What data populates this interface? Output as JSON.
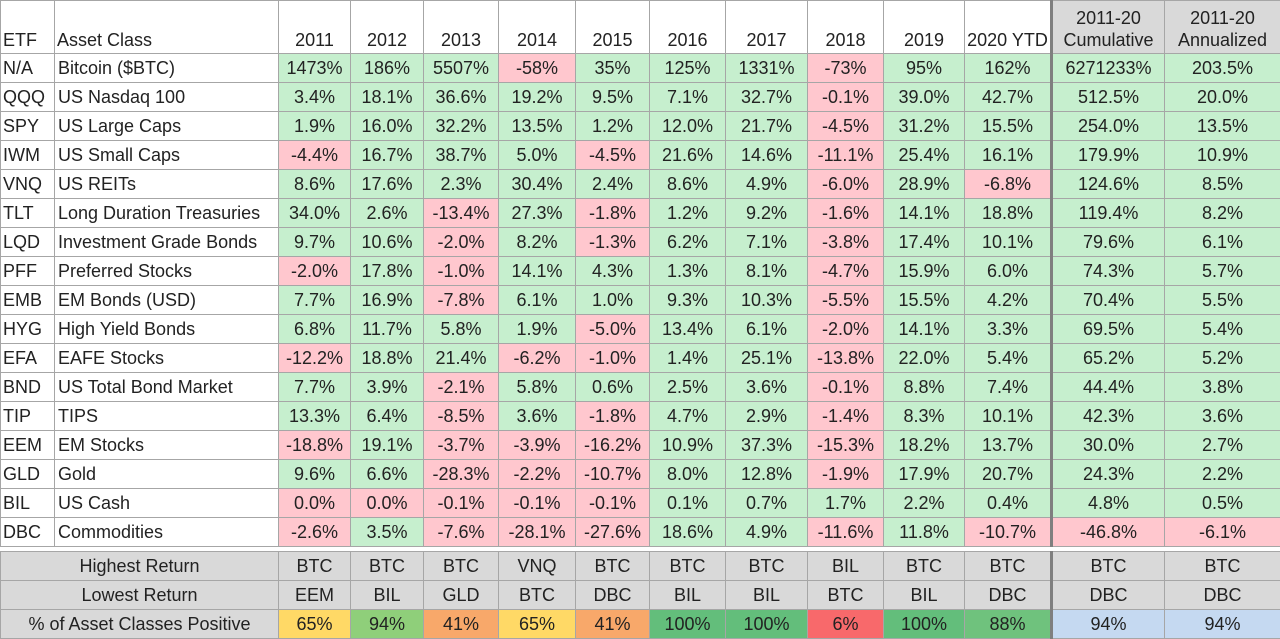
{
  "chart_data": {
    "type": "table",
    "columns": [
      "ETF",
      "Asset Class",
      "2011",
      "2012",
      "2013",
      "2014",
      "2015",
      "2016",
      "2017",
      "2018",
      "2019",
      "2020 YTD",
      "2011-20 Cumulative",
      "2011-20 Annualized"
    ],
    "header": {
      "etf": "ETF",
      "asset": "Asset Class",
      "years": [
        "2011",
        "2012",
        "2013",
        "2014",
        "2015",
        "2016",
        "2017",
        "2018",
        "2019",
        "2020 YTD"
      ],
      "cum_top": "2011-20",
      "cum_bottom": "Cumulative",
      "ann_top": "2011-20",
      "ann_bottom": "Annualized"
    },
    "rows": [
      {
        "etf": "N/A",
        "name": "Bitcoin ($BTC)",
        "values": [
          "1473%",
          "186%",
          "5507%",
          "-58%",
          "35%",
          "125%",
          "1331%",
          "-73%",
          "95%",
          "162%",
          "6271233%",
          "203.5%"
        ]
      },
      {
        "etf": "QQQ",
        "name": "US Nasdaq 100",
        "values": [
          "3.4%",
          "18.1%",
          "36.6%",
          "19.2%",
          "9.5%",
          "7.1%",
          "32.7%",
          "-0.1%",
          "39.0%",
          "42.7%",
          "512.5%",
          "20.0%"
        ]
      },
      {
        "etf": "SPY",
        "name": "US Large Caps",
        "values": [
          "1.9%",
          "16.0%",
          "32.2%",
          "13.5%",
          "1.2%",
          "12.0%",
          "21.7%",
          "-4.5%",
          "31.2%",
          "15.5%",
          "254.0%",
          "13.5%"
        ]
      },
      {
        "etf": "IWM",
        "name": "US Small Caps",
        "values": [
          "-4.4%",
          "16.7%",
          "38.7%",
          "5.0%",
          "-4.5%",
          "21.6%",
          "14.6%",
          "-11.1%",
          "25.4%",
          "16.1%",
          "179.9%",
          "10.9%"
        ]
      },
      {
        "etf": "VNQ",
        "name": "US REITs",
        "values": [
          "8.6%",
          "17.6%",
          "2.3%",
          "30.4%",
          "2.4%",
          "8.6%",
          "4.9%",
          "-6.0%",
          "28.9%",
          "-6.8%",
          "124.6%",
          "8.5%"
        ]
      },
      {
        "etf": "TLT",
        "name": "Long Duration Treasuries",
        "values": [
          "34.0%",
          "2.6%",
          "-13.4%",
          "27.3%",
          "-1.8%",
          "1.2%",
          "9.2%",
          "-1.6%",
          "14.1%",
          "18.8%",
          "119.4%",
          "8.2%"
        ]
      },
      {
        "etf": "LQD",
        "name": "Investment Grade Bonds",
        "values": [
          "9.7%",
          "10.6%",
          "-2.0%",
          "8.2%",
          "-1.3%",
          "6.2%",
          "7.1%",
          "-3.8%",
          "17.4%",
          "10.1%",
          "79.6%",
          "6.1%"
        ]
      },
      {
        "etf": "PFF",
        "name": "Preferred Stocks",
        "values": [
          "-2.0%",
          "17.8%",
          "-1.0%",
          "14.1%",
          "4.3%",
          "1.3%",
          "8.1%",
          "-4.7%",
          "15.9%",
          "6.0%",
          "74.3%",
          "5.7%"
        ]
      },
      {
        "etf": "EMB",
        "name": "EM Bonds (USD)",
        "values": [
          "7.7%",
          "16.9%",
          "-7.8%",
          "6.1%",
          "1.0%",
          "9.3%",
          "10.3%",
          "-5.5%",
          "15.5%",
          "4.2%",
          "70.4%",
          "5.5%"
        ]
      },
      {
        "etf": "HYG",
        "name": "High Yield Bonds",
        "values": [
          "6.8%",
          "11.7%",
          "5.8%",
          "1.9%",
          "-5.0%",
          "13.4%",
          "6.1%",
          "-2.0%",
          "14.1%",
          "3.3%",
          "69.5%",
          "5.4%"
        ]
      },
      {
        "etf": "EFA",
        "name": "EAFE Stocks",
        "values": [
          "-12.2%",
          "18.8%",
          "21.4%",
          "-6.2%",
          "-1.0%",
          "1.4%",
          "25.1%",
          "-13.8%",
          "22.0%",
          "5.4%",
          "65.2%",
          "5.2%"
        ]
      },
      {
        "etf": "BND",
        "name": "US Total Bond Market",
        "values": [
          "7.7%",
          "3.9%",
          "-2.1%",
          "5.8%",
          "0.6%",
          "2.5%",
          "3.6%",
          "-0.1%",
          "8.8%",
          "7.4%",
          "44.4%",
          "3.8%"
        ]
      },
      {
        "etf": "TIP",
        "name": "TIPS",
        "values": [
          "13.3%",
          "6.4%",
          "-8.5%",
          "3.6%",
          "-1.8%",
          "4.7%",
          "2.9%",
          "-1.4%",
          "8.3%",
          "10.1%",
          "42.3%",
          "3.6%"
        ]
      },
      {
        "etf": "EEM",
        "name": "EM Stocks",
        "values": [
          "-18.8%",
          "19.1%",
          "-3.7%",
          "-3.9%",
          "-16.2%",
          "10.9%",
          "37.3%",
          "-15.3%",
          "18.2%",
          "13.7%",
          "30.0%",
          "2.7%"
        ]
      },
      {
        "etf": "GLD",
        "name": "Gold",
        "values": [
          "9.6%",
          "6.6%",
          "-28.3%",
          "-2.2%",
          "-10.7%",
          "8.0%",
          "12.8%",
          "-1.9%",
          "17.9%",
          "20.7%",
          "24.3%",
          "2.2%"
        ]
      },
      {
        "etf": "BIL",
        "name": "US Cash",
        "values": [
          "0.0%",
          "0.0%",
          "-0.1%",
          "-0.1%",
          "-0.1%",
          "0.1%",
          "0.7%",
          "1.7%",
          "2.2%",
          "0.4%",
          "4.8%",
          "0.5%"
        ]
      },
      {
        "etf": "DBC",
        "name": "Commodities",
        "values": [
          "-2.6%",
          "3.5%",
          "-7.6%",
          "-28.1%",
          "-27.6%",
          "18.6%",
          "4.9%",
          "-11.6%",
          "11.8%",
          "-10.7%",
          "-46.8%",
          "-6.1%"
        ]
      }
    ],
    "negative_cells": {
      "BIL": [
        0,
        1
      ]
    },
    "summary": {
      "highest": {
        "label": "Highest Return",
        "values": [
          "BTC",
          "BTC",
          "BTC",
          "VNQ",
          "BTC",
          "BTC",
          "BTC",
          "BIL",
          "BTC",
          "BTC",
          "BTC",
          "BTC"
        ]
      },
      "lowest": {
        "label": "Lowest Return",
        "values": [
          "EEM",
          "BIL",
          "GLD",
          "BTC",
          "DBC",
          "BIL",
          "BIL",
          "BTC",
          "BIL",
          "DBC",
          "DBC",
          "DBC"
        ]
      },
      "positive": {
        "label": "% of Asset Classes Positive",
        "values": [
          "65%",
          "94%",
          "41%",
          "65%",
          "41%",
          "100%",
          "100%",
          "6%",
          "100%",
          "88%",
          "94%",
          "94%"
        ],
        "colors": [
          "#ffd966",
          "#8fcf7a",
          "#f8a86a",
          "#ffd966",
          "#f8a86a",
          "#63be7b",
          "#63be7b",
          "#f8696b",
          "#63be7b",
          "#6fc27d",
          "#c5d9f1",
          "#c5d9f1"
        ]
      }
    },
    "colors": {
      "positive_fill": "#c6efce",
      "negative_fill": "#ffc7ce",
      "gray_fill": "#d9d9d9",
      "blue_fill": "#c5d9f1"
    }
  }
}
